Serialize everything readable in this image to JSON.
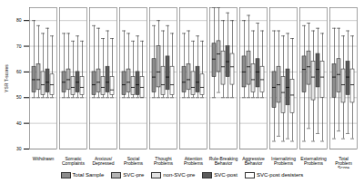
{
  "chart_data": {
    "type": "boxplot",
    "y_label": "YSR T-scores",
    "categories": [
      "Withdrawn",
      "Somatic Complaints",
      "Anxious/Depressed",
      "Social Problems",
      "Thought Problems",
      "Attention Problems",
      "Rule-Breaking Behavior",
      "Aggressive Behavior",
      "Internalizing Problems",
      "Externalizing Problems",
      "Total Problem Score"
    ],
    "ylim": [
      30,
      85
    ],
    "yticks": [
      30,
      40,
      50,
      60,
      70,
      80
    ],
    "grid": true,
    "legend": "bottom",
    "series": [
      {
        "name": "Total Sample",
        "color": "#8c8c8c",
        "values": [
          {
            "min": 50,
            "q1": 52,
            "median": 57,
            "q3": 62,
            "max": 80
          },
          {
            "min": 50,
            "q1": 52,
            "median": 56,
            "q3": 60,
            "max": 75
          },
          {
            "min": 50,
            "q1": 51,
            "median": 55,
            "q3": 60,
            "max": 78
          },
          {
            "min": 50,
            "q1": 51,
            "median": 55,
            "q3": 60,
            "max": 76
          },
          {
            "min": 50,
            "q1": 52,
            "median": 58,
            "q3": 65,
            "max": 78
          },
          {
            "min": 50,
            "q1": 52,
            "median": 56,
            "q3": 62,
            "max": 75
          },
          {
            "min": 50,
            "q1": 58,
            "median": 65,
            "q3": 71,
            "max": 85
          },
          {
            "min": 50,
            "q1": 54,
            "median": 60,
            "q3": 66,
            "max": 80
          },
          {
            "min": 33,
            "q1": 46,
            "median": 54,
            "q3": 60,
            "max": 76
          },
          {
            "min": 33,
            "q1": 52,
            "median": 61,
            "q3": 66,
            "max": 78
          },
          {
            "min": 34,
            "q1": 50,
            "median": 58,
            "q3": 63,
            "max": 77
          }
        ]
      },
      {
        "name": "SVC-pre",
        "color": "#b4b4b4",
        "values": [
          {
            "min": 50,
            "q1": 53,
            "median": 57,
            "q3": 63,
            "max": 78
          },
          {
            "min": 50,
            "q1": 53,
            "median": 57,
            "q3": 61,
            "max": 75
          },
          {
            "min": 50,
            "q1": 52,
            "median": 56,
            "q3": 61,
            "max": 77
          },
          {
            "min": 50,
            "q1": 52,
            "median": 56,
            "q3": 61,
            "max": 75
          },
          {
            "min": 50,
            "q1": 54,
            "median": 60,
            "q3": 70,
            "max": 80
          },
          {
            "min": 50,
            "q1": 53,
            "median": 57,
            "q3": 63,
            "max": 76
          },
          {
            "min": 52,
            "q1": 60,
            "median": 67,
            "q3": 72,
            "max": 85
          },
          {
            "min": 50,
            "q1": 55,
            "median": 62,
            "q3": 68,
            "max": 82
          },
          {
            "min": 35,
            "q1": 48,
            "median": 55,
            "q3": 62,
            "max": 76
          },
          {
            "min": 38,
            "q1": 55,
            "median": 62,
            "q3": 68,
            "max": 79
          },
          {
            "min": 37,
            "q1": 52,
            "median": 59,
            "q3": 65,
            "max": 77
          }
        ]
      },
      {
        "name": "non-SVC-pre",
        "color": "#e2e2e2",
        "values": [
          {
            "min": 50,
            "q1": 51,
            "median": 55,
            "q3": 60,
            "max": 75
          },
          {
            "min": 50,
            "q1": 51,
            "median": 54,
            "q3": 58,
            "max": 72
          },
          {
            "min": 50,
            "q1": 51,
            "median": 54,
            "q3": 58,
            "max": 73
          },
          {
            "min": 50,
            "q1": 51,
            "median": 54,
            "q3": 58,
            "max": 72
          },
          {
            "min": 50,
            "q1": 51,
            "median": 55,
            "q3": 62,
            "max": 76
          },
          {
            "min": 50,
            "q1": 51,
            "median": 54,
            "q3": 60,
            "max": 72
          },
          {
            "min": 50,
            "q1": 55,
            "median": 62,
            "q3": 68,
            "max": 80
          },
          {
            "min": 50,
            "q1": 52,
            "median": 57,
            "q3": 63,
            "max": 76
          },
          {
            "min": 33,
            "q1": 44,
            "median": 52,
            "q3": 58,
            "max": 74
          },
          {
            "min": 33,
            "q1": 49,
            "median": 58,
            "q3": 64,
            "max": 76
          },
          {
            "min": 34,
            "q1": 48,
            "median": 55,
            "q3": 61,
            "max": 74
          }
        ]
      },
      {
        "name": "SVC-post",
        "color": "#5a5a5a",
        "values": [
          {
            "min": 50,
            "q1": 52,
            "median": 56,
            "q3": 61,
            "max": 77
          },
          {
            "min": 50,
            "q1": 52,
            "median": 56,
            "q3": 60,
            "max": 74
          },
          {
            "min": 50,
            "q1": 52,
            "median": 56,
            "q3": 62,
            "max": 76
          },
          {
            "min": 50,
            "q1": 51,
            "median": 55,
            "q3": 60,
            "max": 74
          },
          {
            "min": 50,
            "q1": 53,
            "median": 58,
            "q3": 66,
            "max": 78
          },
          {
            "min": 50,
            "q1": 52,
            "median": 56,
            "q3": 62,
            "max": 74
          },
          {
            "min": 50,
            "q1": 58,
            "median": 64,
            "q3": 70,
            "max": 83
          },
          {
            "min": 50,
            "q1": 54,
            "median": 60,
            "q3": 65,
            "max": 79
          },
          {
            "min": 34,
            "q1": 47,
            "median": 54,
            "q3": 61,
            "max": 75
          },
          {
            "min": 36,
            "q1": 54,
            "median": 61,
            "q3": 67,
            "max": 77
          },
          {
            "min": 36,
            "q1": 51,
            "median": 58,
            "q3": 64,
            "max": 76
          }
        ]
      },
      {
        "name": "SVC-post desisters",
        "color": "#ffffff",
        "values": [
          {
            "min": 50,
            "q1": 51,
            "median": 55,
            "q3": 59,
            "max": 74
          },
          {
            "min": 50,
            "q1": 51,
            "median": 54,
            "q3": 58,
            "max": 72
          },
          {
            "min": 50,
            "q1": 51,
            "median": 53,
            "q3": 58,
            "max": 73
          },
          {
            "min": 50,
            "q1": 50,
            "median": 54,
            "q3": 58,
            "max": 72
          },
          {
            "min": 50,
            "q1": 51,
            "median": 55,
            "q3": 62,
            "max": 75
          },
          {
            "min": 50,
            "q1": 51,
            "median": 54,
            "q3": 59,
            "max": 72
          },
          {
            "min": 50,
            "q1": 55,
            "median": 62,
            "q3": 67,
            "max": 80
          },
          {
            "min": 50,
            "q1": 52,
            "median": 57,
            "q3": 62,
            "max": 76
          },
          {
            "min": 33,
            "q1": 44,
            "median": 51,
            "q3": 57,
            "max": 73
          },
          {
            "min": 33,
            "q1": 50,
            "median": 58,
            "q3": 64,
            "max": 75
          },
          {
            "min": 34,
            "q1": 48,
            "median": 55,
            "q3": 61,
            "max": 74
          }
        ]
      }
    ]
  }
}
